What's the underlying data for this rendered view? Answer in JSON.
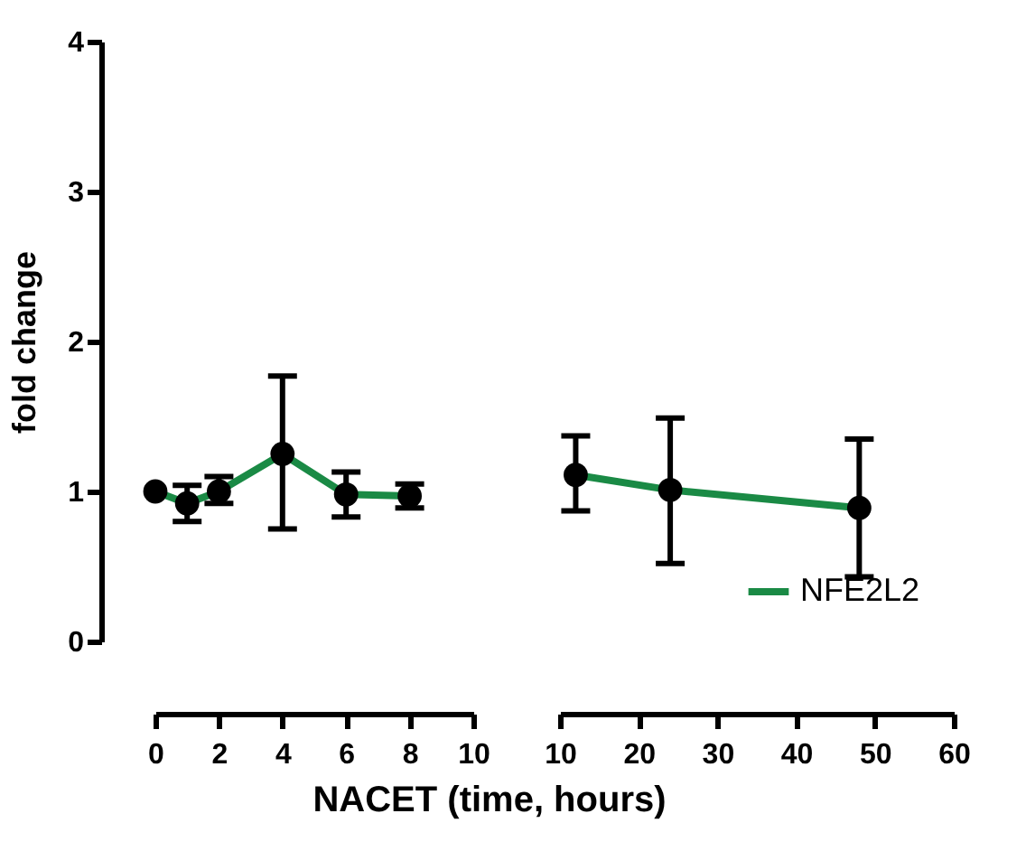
{
  "chart_data": [
    {
      "type": "line",
      "ylabel": "fold change",
      "xlabel": "NACET (time, hours)",
      "x": [
        0,
        1,
        2,
        4,
        6,
        8
      ],
      "xlim": [
        0,
        10
      ],
      "xticks": [
        0,
        2,
        4,
        6,
        8,
        10
      ],
      "ylim": [
        0,
        4
      ],
      "yticks": [
        0,
        1,
        2,
        3,
        4
      ],
      "grid": false,
      "legend": false,
      "marker": "circle",
      "line_style": "solid",
      "series": [
        {
          "color": "#1a8a45",
          "values": [
            1.0,
            0.92,
            1.0,
            1.25,
            0.98,
            0.97
          ],
          "errors": [
            null,
            [
              0.8,
              1.04
            ],
            [
              0.92,
              1.1
            ],
            [
              0.75,
              1.77
            ],
            [
              0.83,
              1.13
            ],
            [
              0.89,
              1.05
            ]
          ]
        }
      ]
    },
    {
      "type": "line",
      "x": [
        12,
        24,
        48
      ],
      "xlim": [
        10,
        60
      ],
      "xticks": [
        10,
        20,
        30,
        40,
        50,
        60
      ],
      "ylim": [
        0,
        4
      ],
      "yticks": [
        0,
        1,
        2,
        3,
        4
      ],
      "tick_labels": "x",
      "grid": false,
      "legend": "bottom right",
      "marker": "circle",
      "line_style": "solid",
      "series": [
        {
          "name": "NFE2L2",
          "color": "#1a8a45",
          "values": [
            1.11,
            1.01,
            0.89
          ],
          "errors": [
            [
              0.87,
              1.37
            ],
            [
              0.52,
              1.49
            ],
            [
              0.43,
              1.35
            ]
          ]
        }
      ]
    }
  ]
}
